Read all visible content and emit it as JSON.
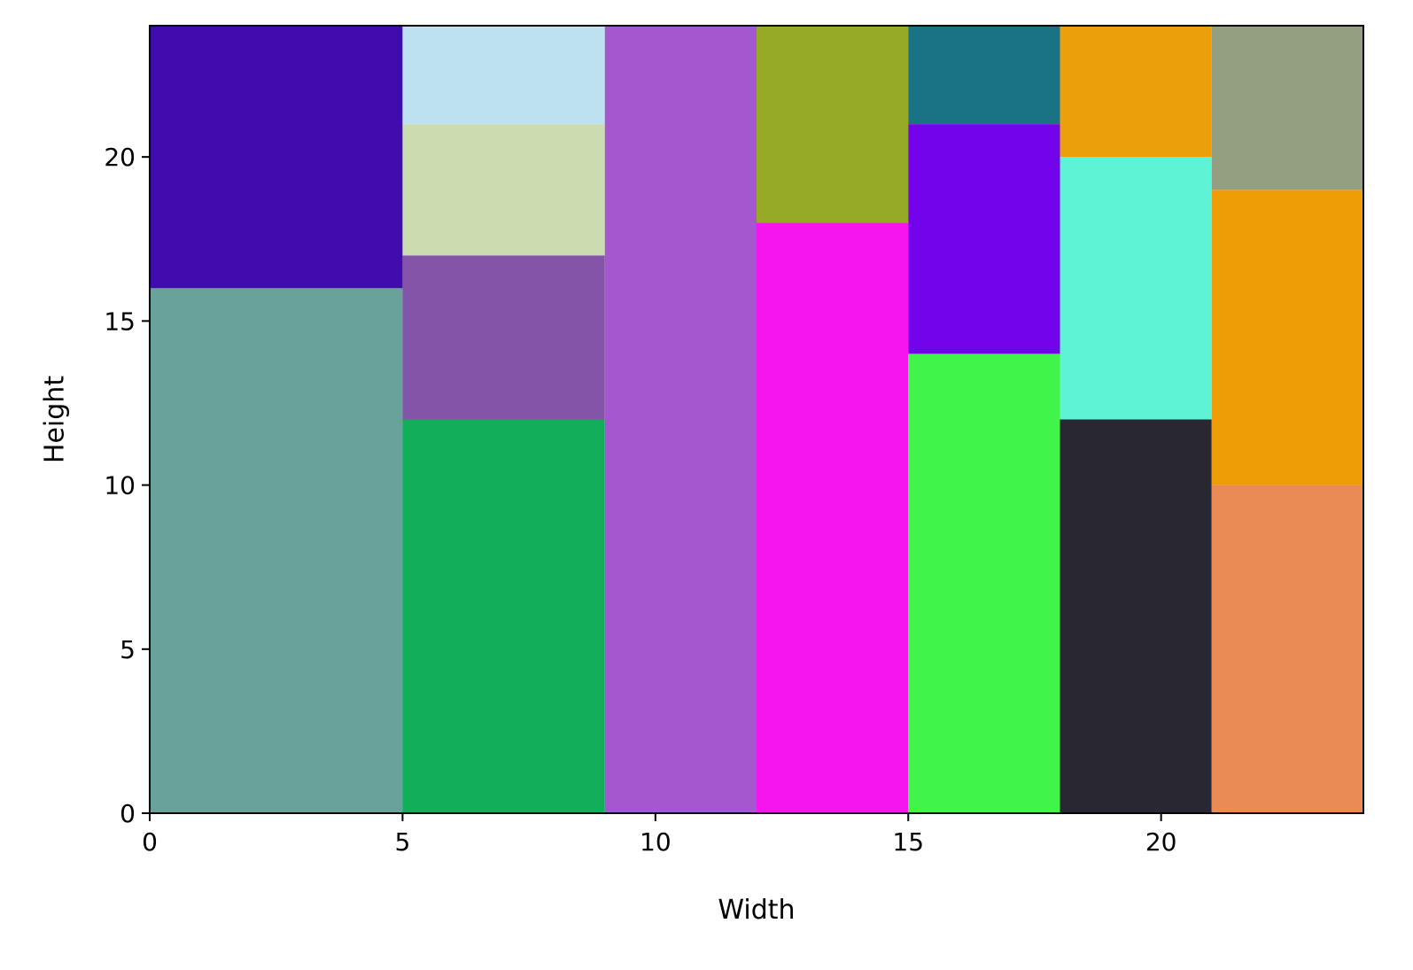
{
  "chart_data": {
    "type": "treemap",
    "title": "",
    "xlabel": "Width",
    "ylabel": "Height",
    "xlim": [
      0,
      24
    ],
    "ylim": [
      0,
      24
    ],
    "xticks": [
      0,
      5,
      10,
      15,
      20
    ],
    "yticks": [
      0,
      5,
      10,
      15,
      20
    ],
    "grid": false,
    "rects": [
      {
        "x": 0,
        "y": 0,
        "w": 5,
        "h": 16,
        "color": "#69a19b"
      },
      {
        "x": 0,
        "y": 16,
        "w": 5,
        "h": 8,
        "color": "#410cad"
      },
      {
        "x": 5,
        "y": 0,
        "w": 4,
        "h": 12,
        "color": "#12ae5a"
      },
      {
        "x": 5,
        "y": 12,
        "w": 4,
        "h": 5,
        "color": "#8354a7"
      },
      {
        "x": 5,
        "y": 17,
        "w": 4,
        "h": 4,
        "color": "#cbdcb0"
      },
      {
        "x": 5,
        "y": 21,
        "w": 4,
        "h": 3,
        "color": "#bde1f0"
      },
      {
        "x": 9,
        "y": 0,
        "w": 3,
        "h": 24,
        "color": "#a557cf"
      },
      {
        "x": 12,
        "y": 0,
        "w": 3,
        "h": 18,
        "color": "#f515ee"
      },
      {
        "x": 12,
        "y": 18,
        "w": 3,
        "h": 6,
        "color": "#96aa28"
      },
      {
        "x": 15,
        "y": 0,
        "w": 3,
        "h": 14,
        "color": "#40f449"
      },
      {
        "x": 15,
        "y": 14,
        "w": 3,
        "h": 7,
        "color": "#7203ea"
      },
      {
        "x": 15,
        "y": 21,
        "w": 3,
        "h": 3,
        "color": "#1a7385"
      },
      {
        "x": 18,
        "y": 0,
        "w": 3,
        "h": 12,
        "color": "#282732"
      },
      {
        "x": 18,
        "y": 12,
        "w": 3,
        "h": 8,
        "color": "#5df3d4"
      },
      {
        "x": 18,
        "y": 20,
        "w": 3,
        "h": 4,
        "color": "#eba00b"
      },
      {
        "x": 21,
        "y": 0,
        "w": 3,
        "h": 10,
        "color": "#ea8b56"
      },
      {
        "x": 21,
        "y": 10,
        "w": 3,
        "h": 9,
        "color": "#ef9d06"
      },
      {
        "x": 21,
        "y": 19,
        "w": 3,
        "h": 5,
        "color": "#949f81"
      }
    ]
  }
}
